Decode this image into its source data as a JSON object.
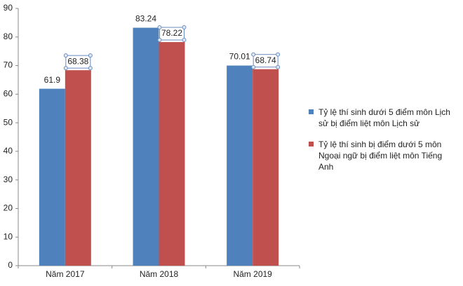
{
  "chart_data": {
    "type": "bar",
    "categories": [
      "Năm 2017",
      "Năm 2018",
      "Năm 2019"
    ],
    "series": [
      {
        "name": "Tỷ lệ thí sinh dưới 5 điểm môn Lịch sử bị điểm liệt môn Lịch sử",
        "color": "#4f81bd",
        "values": [
          61.9,
          83.24,
          70.01
        ]
      },
      {
        "name": "Tỷ lệ thí sinh bị điểm dưới 5 môn Ngoại ngữ bị điểm liệt môn Tiếng Anh",
        "color": "#c0504d",
        "values": [
          68.38,
          78.22,
          68.74
        ]
      }
    ],
    "ylim": [
      0,
      90
    ],
    "yticks": [
      0,
      10,
      20,
      30,
      40,
      50,
      60,
      70,
      80,
      90
    ],
    "grid": false,
    "legend": "right"
  }
}
